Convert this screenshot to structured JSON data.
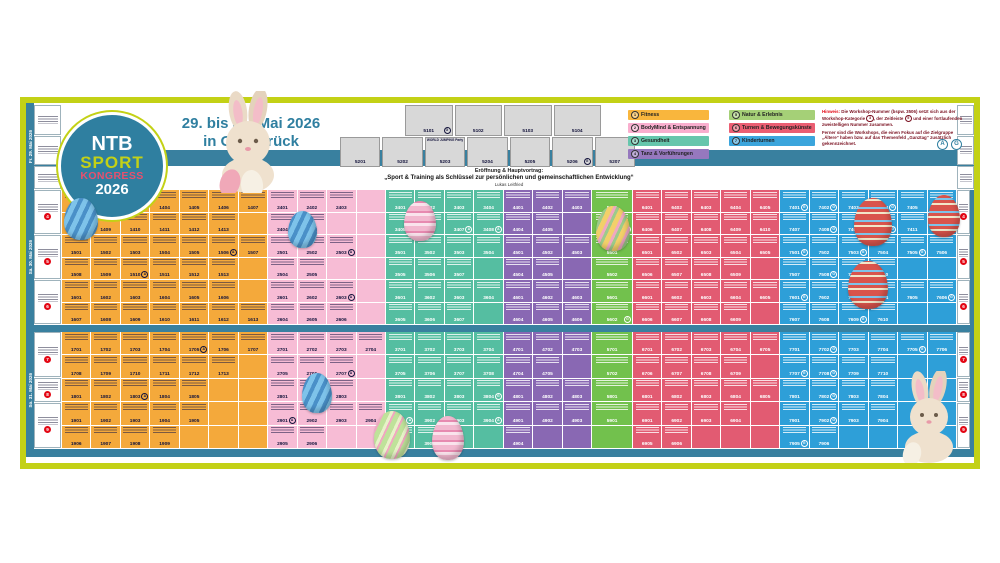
{
  "poster": {
    "title_line1": "29. bis 31. Mai 2026",
    "title_line2": "in Osnabrück"
  },
  "logo": {
    "l1": "NTB",
    "l2": "SPORT",
    "l3": "KONGRESS",
    "l4": "2026"
  },
  "legend": {
    "items": [
      {
        "num": "1",
        "label": "Fitness",
        "color": "#F9B63D"
      },
      {
        "num": "2",
        "label": "BodyMind & Entspannung",
        "color": "#F9AECE"
      },
      {
        "num": "3",
        "label": "Gesundheit",
        "color": "#66C6AC"
      },
      {
        "num": "4",
        "label": "Tanz & Vorführungen",
        "color": "#9678BE"
      },
      {
        "num": "5",
        "label": "Natur & Erlebnis",
        "color": "#A5D077"
      },
      {
        "num": "6",
        "label": "Turnen & Bewegungskünste",
        "color": "#EB5E72"
      },
      {
        "num": "7",
        "label": "Kinderturnen",
        "color": "#3BA5DC"
      }
    ]
  },
  "hinweis": {
    "label": "Hinweis:",
    "seg1": " Die Workshop-Nummer (bspw. 3506) setzt sich aus der Workshop-Kategorie ",
    "circ1": "3",
    "seg2": ", der Zeitleiste ",
    "circ2": "5",
    "seg3": " und einer fortlaufenden zweistelligen Nummer zusammen.",
    "para2": "Ferner sind die Workshops, die einen Fokus auf die Zielgruppe „Ältere“ haben bzw. auf das Themenfeld „Ganztag“ zusätzlich gekennzeichnet.",
    "badges": [
      "A",
      "G"
    ]
  },
  "opening": {
    "line1": "Eröffnung & Hauptvortrag:",
    "line2": "„Sport & Training als Schlüssel zur persönlichen und gemeinschaftlichen Entwicklung“",
    "speaker": "Lukas Leitfried"
  },
  "days": {
    "friday": "Fr. 29. Mai 2026",
    "saturday": "Sa. 30. Mai 2026",
    "sunday": "So. 31. Mai 2026"
  },
  "friday_boxes": {
    "row1": [
      {
        "n": "5101",
        "m": "G",
        "t": ""
      },
      {
        "n": "5102",
        "m": "",
        "t": ""
      },
      {
        "n": "5103",
        "m": "",
        "t": ""
      },
      {
        "n": "5104",
        "m": "",
        "t": ""
      }
    ],
    "row2": [
      {
        "n": "5201",
        "m": "",
        "t": ""
      },
      {
        "n": "5202",
        "m": "",
        "t": ""
      },
      {
        "n": "5203",
        "m": "",
        "t": "WORLD JUMPING Party"
      },
      {
        "n": "5204",
        "m": "",
        "t": ""
      },
      {
        "n": "5205",
        "m": "",
        "t": ""
      },
      {
        "n": "5206",
        "m": "G",
        "t": ""
      },
      {
        "n": "5207",
        "m": "",
        "t": ""
      }
    ]
  },
  "categories": [
    {
      "key": "fitness",
      "cls": "cat-f",
      "cols": 7,
      "w": 1
    },
    {
      "key": "bodymind",
      "cls": "cat-b",
      "cols": 4,
      "w": 1
    },
    {
      "key": "gesundheit",
      "cls": "cat-g",
      "cols": 4,
      "w": 1
    },
    {
      "key": "tanz",
      "cls": "cat-t",
      "cols": 3,
      "w": 1
    },
    {
      "key": "natur",
      "cls": "cat-n",
      "cols": 1,
      "w": 1.4
    },
    {
      "key": "turnen",
      "cls": "cat-r",
      "cols": 5,
      "w": 1
    },
    {
      "key": "kinderturnen",
      "cls": "cat-k",
      "cols": 6,
      "w": 1
    }
  ],
  "slots": {
    "header": [
      {
        "circle": ""
      },
      {
        "circle": ""
      }
    ],
    "opening": [
      {
        "circle": ""
      }
    ],
    "saturday": [
      {
        "circle": "4",
        "rows": 2
      },
      {
        "circle": "5",
        "rows": 2
      },
      {
        "circle": "6",
        "rows": 2
      }
    ],
    "sunday": [
      {
        "circle": "7",
        "rows": 2
      },
      {
        "circle": "8",
        "rows": 1
      },
      {
        "circle": "9",
        "rows": 2
      }
    ]
  },
  "grid": {
    "saturday_rows": [
      [
        "1401",
        "1402",
        "1403",
        "1404",
        "1405",
        "1406",
        "1407",
        "2401",
        "2402",
        "2403",
        "",
        "3401",
        "3402",
        "3403",
        "3404",
        "4401",
        "4402",
        "4403",
        "5401",
        "6401",
        "6402",
        "6403",
        "6404",
        "6405",
        "7401G",
        "7402G",
        "7403G",
        "7404G",
        "7405",
        "7406G"
      ],
      [
        "1408",
        "1409",
        "1410",
        "1411",
        "1412",
        "1413",
        "",
        "2404A",
        "2405",
        "",
        "",
        "3405",
        "3406",
        "3407A",
        "3408A",
        "4404",
        "4405",
        "",
        "5402G",
        "6406",
        "6407",
        "6408",
        "6409",
        "6410",
        "7407",
        "7408G",
        "7409",
        "7410G",
        "7411",
        ""
      ],
      [
        "1501",
        "1502",
        "1503",
        "1504",
        "1505",
        "1506A",
        "1507",
        "2501",
        "2502",
        "2503A",
        "",
        "3501",
        "3502",
        "3503",
        "3504",
        "4501",
        "4502",
        "4503",
        "5501",
        "6501",
        "6502",
        "6503",
        "6504",
        "6505",
        "7501G",
        "7502",
        "7503G",
        "7504",
        "7505G",
        "7506"
      ],
      [
        "1508",
        "1509",
        "1510A",
        "1511",
        "1512",
        "1513",
        "",
        "2504",
        "2505",
        "",
        "",
        "3505",
        "3506",
        "3507",
        "",
        "4504",
        "4505",
        "",
        "5502",
        "6506",
        "6507",
        "6508",
        "6509",
        "",
        "7507",
        "7508G",
        "7509",
        "7510",
        "",
        ""
      ],
      [
        "1601",
        "1602",
        "1603",
        "1604",
        "1605",
        "1606",
        "",
        "2601",
        "2602",
        "2603A",
        "",
        "3601",
        "3602",
        "3603",
        "3604",
        "4601",
        "4602",
        "4603",
        "5601",
        "6601",
        "6602",
        "6603",
        "6604",
        "6605",
        "7601G",
        "7602",
        "7603G",
        "7604",
        "7605",
        "7606G"
      ],
      [
        "1607",
        "1608",
        "1609",
        "1610",
        "1611",
        "1612",
        "1613",
        "2604",
        "2605",
        "2606",
        "",
        "3605",
        "3606",
        "3607",
        "",
        "4604",
        "4605",
        "4606",
        "5602G",
        "6606",
        "6607",
        "6608",
        "6609",
        "",
        "7607",
        "7608",
        "7609G",
        "7610",
        "",
        ""
      ]
    ],
    "sunday_rows": [
      [
        "1701",
        "1702",
        "1703",
        "1704",
        "1705A",
        "1706",
        "1707",
        "2701",
        "2702",
        "2703",
        "2704",
        "3701",
        "3702",
        "3703",
        "3704",
        "4701",
        "4702",
        "4703",
        "5701",
        "6701",
        "6702",
        "6703",
        "6704",
        "6705",
        "7701",
        "7702G",
        "7703",
        "7704",
        "7705G",
        "7706"
      ],
      [
        "1708",
        "1709",
        "1710",
        "1711",
        "1712",
        "1713",
        "",
        "2705",
        "2706",
        "2707A",
        "",
        "3705",
        "3706",
        "3707",
        "3708",
        "4704",
        "4705",
        "",
        "5702",
        "6706",
        "6707",
        "6708",
        "6709",
        "",
        "7707G",
        "7708G",
        "7709",
        "7710",
        "",
        ""
      ],
      [
        "1801",
        "1802",
        "1803A",
        "1804",
        "1805",
        "",
        "",
        "2801",
        "2802",
        "2803",
        "",
        "3801",
        "3802",
        "3803",
        "3804G",
        "4801",
        "4802",
        "4803",
        "5801",
        "6801",
        "6802",
        "6803",
        "6804",
        "6805",
        "7801",
        "7802G",
        "7803",
        "7804",
        "",
        ""
      ],
      [
        "1901",
        "1902",
        "1903",
        "1904",
        "1905",
        "",
        "",
        "2901A",
        "2902",
        "2903",
        "2904",
        "3901A",
        "3902",
        "3903",
        "3904A",
        "4901",
        "4902",
        "4903",
        "5901",
        "6901",
        "6902",
        "6903",
        "6904",
        "",
        "7901",
        "7902G",
        "7903",
        "7904",
        "",
        ""
      ],
      [
        "1906",
        "1907",
        "1908",
        "1909",
        "",
        "",
        "",
        "2905",
        "2906",
        "",
        "",
        "3905",
        "3906",
        "",
        "",
        "4904",
        "",
        "",
        "",
        "6905",
        "6906",
        "",
        "",
        "",
        "7905G",
        "7906",
        "",
        "",
        "",
        ""
      ]
    ]
  }
}
